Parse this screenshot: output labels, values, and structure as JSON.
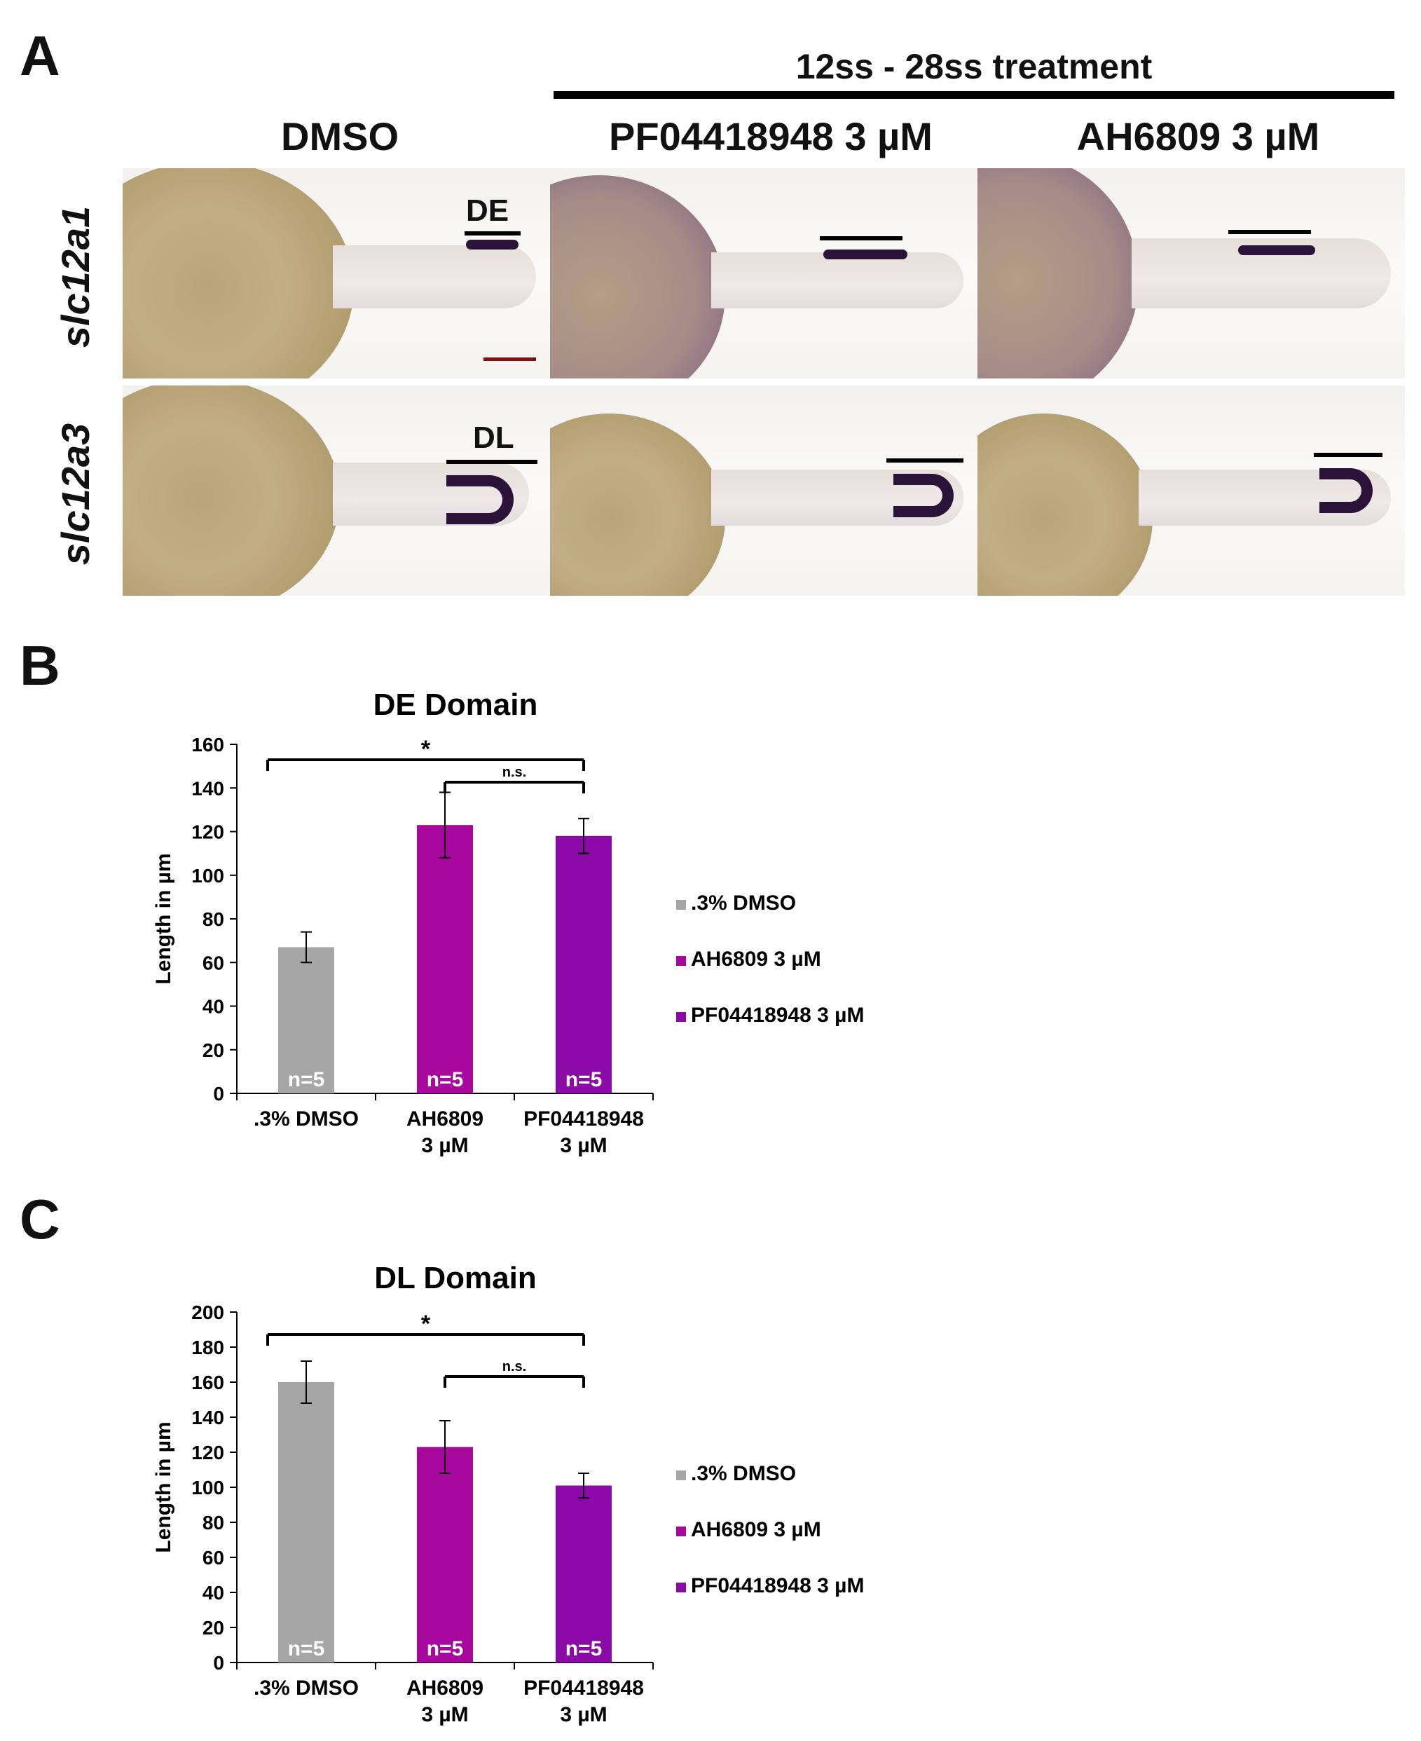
{
  "panel_a": {
    "letter": "A",
    "treatment_title": "12ss - 28ss treatment",
    "columns": [
      "DMSO",
      "PF04418948 3 µM",
      "AH6809 3 µM"
    ],
    "rows": [
      "slc12a1",
      "slc12a3"
    ],
    "labels": {
      "de": "DE",
      "dl": "DL"
    }
  },
  "panel_b": {
    "letter": "B",
    "chart_data": {
      "type": "bar",
      "title": "DE Domain",
      "ylabel": "Length in µm",
      "ylim": [
        0,
        160
      ],
      "yticks": [
        "0",
        "20",
        "40",
        "60",
        "80",
        "100",
        "120",
        "140",
        "160"
      ],
      "categories": [
        ".3% DMSO",
        "AH6809\n3 µM",
        "PF04418948\n3 µM"
      ],
      "values": [
        67,
        123,
        118
      ],
      "errors": [
        7,
        15,
        8
      ],
      "n_labels": [
        "n=5",
        "n=5",
        "n=5"
      ],
      "colors": [
        "#a6a6a6",
        "#a8079e",
        "#8b09a6"
      ],
      "legend": [
        ".3% DMSO",
        "AH6809 3 µM",
        "PF04418948 3 µM"
      ],
      "legend_position": "right",
      "significance": [
        {
          "from": 0,
          "to": 2,
          "label": "*"
        },
        {
          "from": 1,
          "to": 2,
          "label": "n.s."
        }
      ]
    }
  },
  "panel_c": {
    "letter": "C",
    "chart_data": {
      "type": "bar",
      "title": "DL Domain",
      "ylabel": "Length in µm",
      "ylim": [
        0,
        200
      ],
      "yticks": [
        "0",
        "20",
        "40",
        "60",
        "80",
        "100",
        "120",
        "140",
        "160",
        "180",
        "200"
      ],
      "categories": [
        ".3% DMSO",
        "AH6809\n3 µM",
        "PF04418948\n3 µM"
      ],
      "values": [
        160,
        123,
        101
      ],
      "errors": [
        12,
        15,
        7
      ],
      "n_labels": [
        "n=5",
        "n=5",
        "n=5"
      ],
      "colors": [
        "#a6a6a6",
        "#a8079e",
        "#8b09a6"
      ],
      "legend": [
        ".3% DMSO",
        "AH6809 3 µM",
        "PF04418948 3 µM"
      ],
      "legend_position": "right",
      "significance": [
        {
          "from": 0,
          "to": 2,
          "label": "*"
        },
        {
          "from": 1,
          "to": 2,
          "label": "n.s."
        }
      ]
    }
  }
}
